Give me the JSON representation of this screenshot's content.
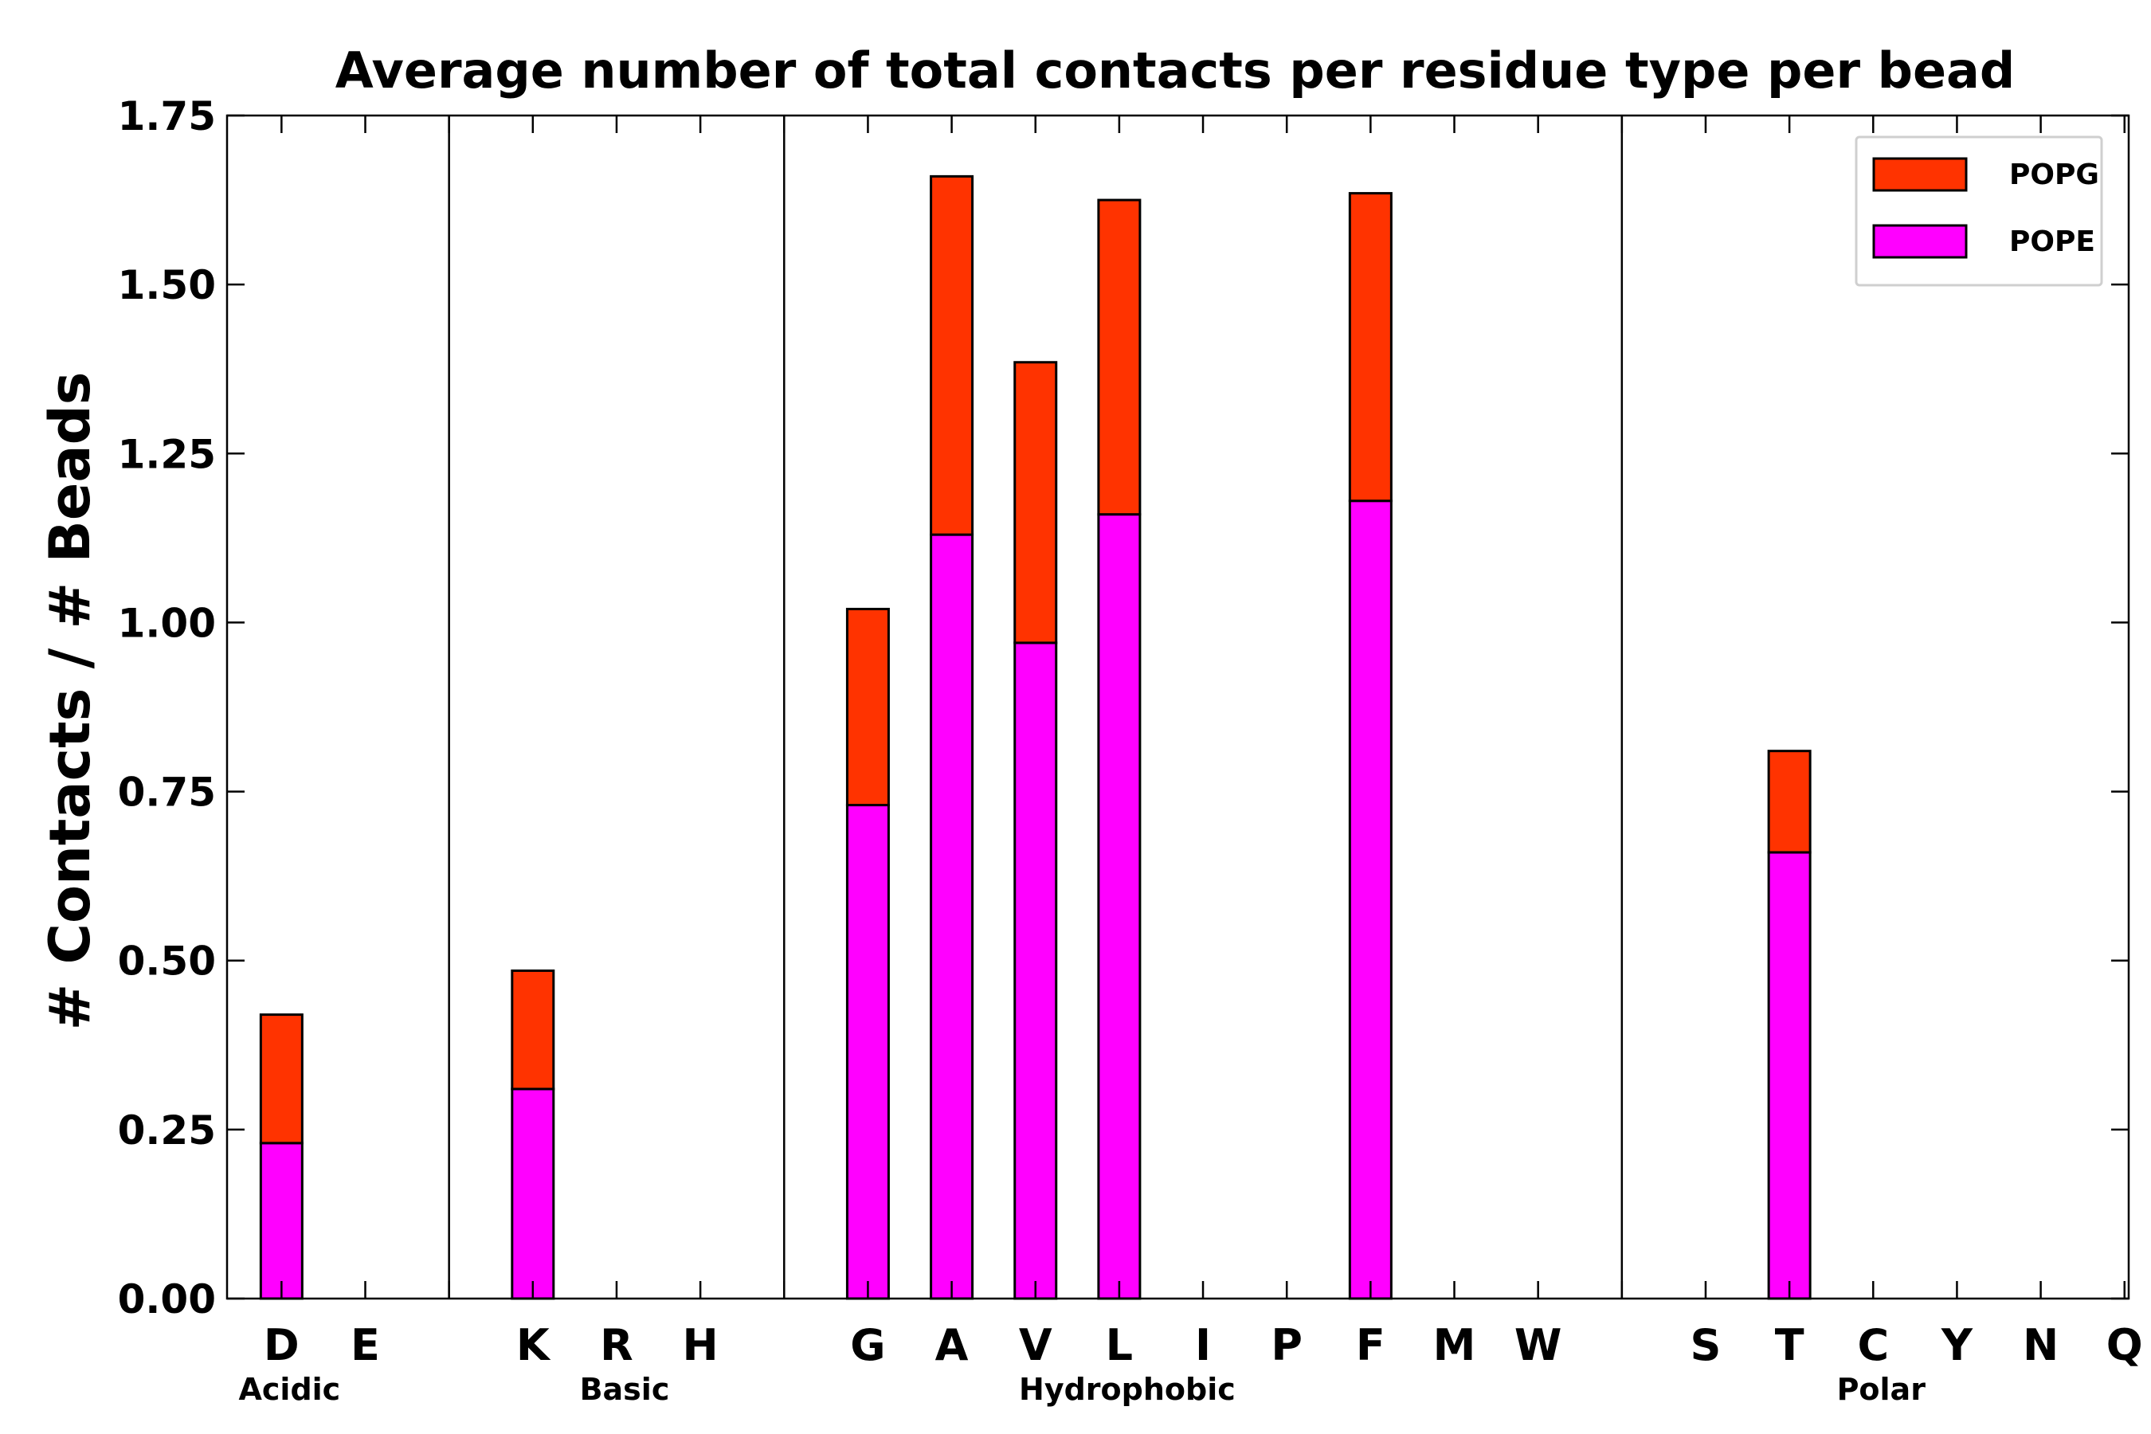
{
  "chart_data": {
    "type": "bar",
    "stacked": true,
    "title": "Average number of total contacts per residue type per bead",
    "xlabel": "",
    "ylabel": "# Contacts / # Beads",
    "ylim": [
      0,
      1.75
    ],
    "yticks": [
      "0.00",
      "0.25",
      "0.50",
      "0.75",
      "1.00",
      "1.25",
      "1.50",
      "1.75"
    ],
    "categories": [
      "D",
      "E",
      "",
      "K",
      "R",
      "H",
      "",
      "G",
      "A",
      "V",
      "L",
      "I",
      "P",
      "F",
      "M",
      "W",
      "",
      "S",
      "T",
      "C",
      "Y",
      "N",
      "Q"
    ],
    "series": [
      {
        "name": "POPE",
        "color": "#ff00ff",
        "values": [
          0.23,
          0,
          0,
          0.31,
          0,
          0,
          0,
          0.73,
          1.13,
          0.97,
          1.16,
          0,
          0,
          1.18,
          0,
          0,
          0,
          0,
          0.66,
          0,
          0,
          0,
          0
        ]
      },
      {
        "name": "POPG",
        "color": "#ff3300",
        "values": [
          0.19,
          0,
          0,
          0.175,
          0,
          0,
          0,
          0.29,
          0.53,
          0.415,
          0.465,
          0,
          0,
          0.455,
          0,
          0,
          0,
          0,
          0.15,
          0,
          0,
          0,
          0
        ]
      }
    ],
    "groups": [
      {
        "label": "Acidic",
        "label_under": "D"
      },
      {
        "label": "Basic",
        "label_under": "R"
      },
      {
        "label": "Hydrophobic",
        "label_under": "L"
      },
      {
        "label": "Polar",
        "label_under": "C"
      }
    ],
    "separators_after": [
      "E",
      "H",
      "W"
    ],
    "legend": {
      "position": "top-right",
      "entries": [
        "POPG",
        "POPE"
      ]
    }
  }
}
